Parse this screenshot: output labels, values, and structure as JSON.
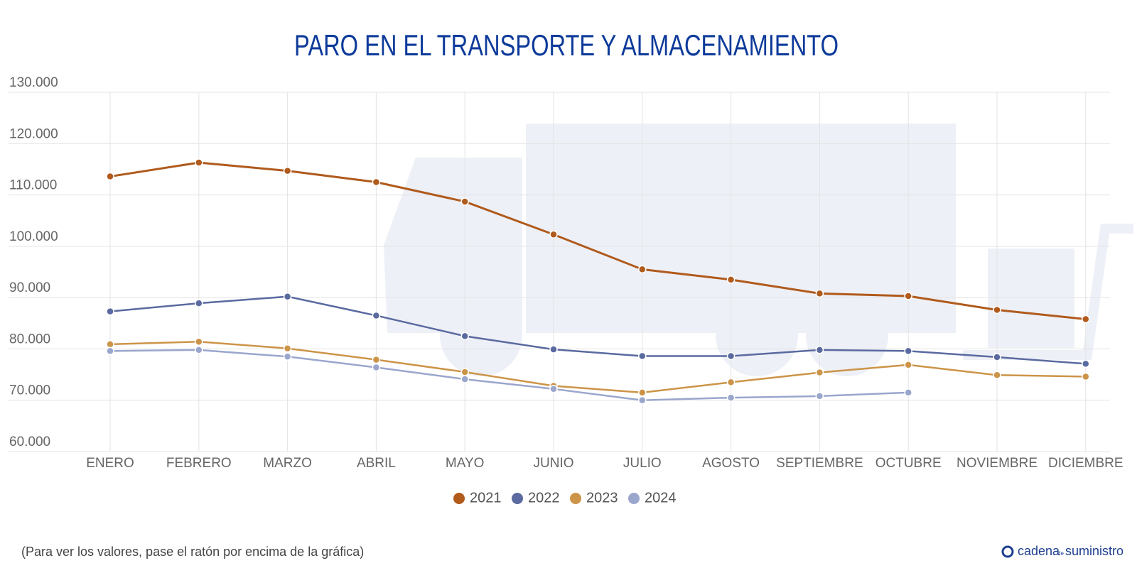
{
  "chart_data": {
    "type": "line",
    "title": "PARO EN EL TRANSPORTE Y ALMACENAMIENTO",
    "categories": [
      "ENERO",
      "FEBRERO",
      "MARZO",
      "ABRIL",
      "MAYO",
      "JUNIO",
      "JULIO",
      "AGOSTO",
      "SEPTIEMBRE",
      "OCTUBRE",
      "NOVIEMBRE",
      "DICIEMBRE"
    ],
    "series": [
      {
        "name": "2021",
        "color": "#b05a1c",
        "values": [
          113600,
          116300,
          114700,
          112500,
          108700,
          102300,
          95500,
          93500,
          90800,
          90300,
          87600,
          85800
        ]
      },
      {
        "name": "2022",
        "color": "#5a6aa0",
        "values": [
          87300,
          88900,
          90200,
          86500,
          82500,
          79900,
          78600,
          78600,
          79800,
          79600,
          78400,
          77100
        ]
      },
      {
        "name": "2023",
        "color": "#cc9448",
        "values": [
          80900,
          81400,
          80100,
          77900,
          75500,
          72800,
          71500,
          73500,
          75400,
          76900,
          74900,
          74600
        ]
      },
      {
        "name": "2024",
        "color": "#9aa6cc",
        "values": [
          79600,
          79800,
          78500,
          76400,
          74100,
          72200,
          70000,
          70500,
          70800,
          71500,
          null,
          null
        ]
      }
    ],
    "ylim": [
      60000,
      130000
    ],
    "yticks": [
      {
        "value": 60000,
        "label": "60.000"
      },
      {
        "value": 70000,
        "label": "70.000"
      },
      {
        "value": 80000,
        "label": "80.000"
      },
      {
        "value": 90000,
        "label": "90.000"
      },
      {
        "value": 100000,
        "label": "100.000"
      },
      {
        "value": 110000,
        "label": "110.000"
      },
      {
        "value": 120000,
        "label": "120.000"
      },
      {
        "value": 130000,
        "label": "130.000"
      }
    ],
    "grid": true,
    "legend": "bottom",
    "footnote": "(Para ver los valores, pase el ratón por encima de la gráfica)",
    "brand": {
      "first": "cadena",
      "middle": "de",
      "last": "suministro"
    }
  }
}
